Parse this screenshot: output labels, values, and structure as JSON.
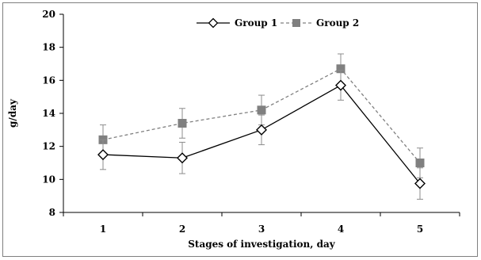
{
  "chart_data": {
    "type": "line",
    "title": "",
    "xlabel": "Stages of investigation, day",
    "ylabel": "g/day",
    "categories": [
      "1",
      "2",
      "3",
      "4",
      "5"
    ],
    "ylim": [
      8,
      20
    ],
    "yticks": [
      "8",
      "10",
      "12",
      "14",
      "16",
      "18",
      "20"
    ],
    "grid": false,
    "legend_position": "top",
    "series": [
      {
        "name": "Group 1",
        "values": [
          11.5,
          11.3,
          13.0,
          15.7,
          9.75
        ],
        "error": [
          0.9,
          0.95,
          0.9,
          0.9,
          0.95
        ],
        "color": "#000000",
        "line_style": "solid",
        "marker": "diamond-open"
      },
      {
        "name": "Group 2",
        "values": [
          12.4,
          13.4,
          14.2,
          16.7,
          11.0
        ],
        "error": [
          0.9,
          0.9,
          0.9,
          0.9,
          0.9
        ],
        "color": "#808080",
        "line_style": "dashed",
        "marker": "square-filled"
      }
    ]
  }
}
